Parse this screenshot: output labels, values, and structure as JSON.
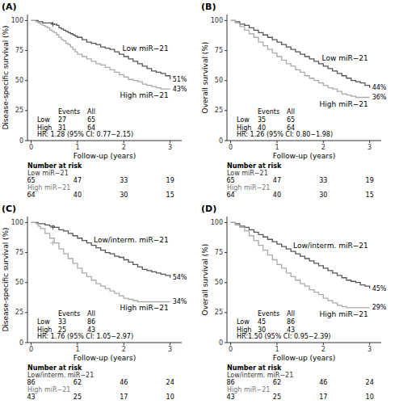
{
  "chart_data": [
    {
      "type": "step",
      "title": "(A)",
      "ylabel": "Disease-specific survival (%)",
      "xlabel": "Follow-up (years)",
      "xlim": [
        -0.08,
        3.25
      ],
      "xticks": [
        0,
        1,
        2,
        3
      ],
      "ylim": [
        0,
        105
      ],
      "yticks": [
        0,
        25,
        50,
        75,
        100
      ],
      "grid": false,
      "events_header": [
        "Events",
        "All"
      ],
      "hr_label": "HR: 1.28 (95% CI: 0.77−2.15)",
      "at_risk_label": "Number at risk",
      "series": [
        {
          "name": "Low miR−21",
          "color": "#555555",
          "x": [
            0,
            0.05,
            0.1,
            0.15,
            0.2,
            0.25,
            0.3,
            0.35,
            0.4,
            0.45,
            0.5,
            0.55,
            0.6,
            0.65,
            0.7,
            0.75,
            0.8,
            0.85,
            0.9,
            0.95,
            1.0,
            1.1,
            1.2,
            1.3,
            1.4,
            1.5,
            1.6,
            1.7,
            1.8,
            1.9,
            2.0,
            2.1,
            2.2,
            2.3,
            2.4,
            2.5,
            2.6,
            2.7,
            2.8,
            2.9,
            3.0
          ],
          "values": [
            100,
            100,
            100,
            99,
            99,
            98,
            98,
            98,
            98,
            97,
            97,
            96,
            94,
            93,
            92,
            91,
            90,
            89,
            88,
            87,
            86,
            84,
            82,
            81,
            80,
            78,
            77,
            76,
            74,
            72,
            70,
            68,
            66,
            64,
            62,
            60,
            58,
            57,
            56,
            54,
            51
          ],
          "censor_x": [
            0.47
          ],
          "censor_values": [
            97
          ],
          "end_label": "51%",
          "events_label": "Low",
          "events": 27,
          "total": 65,
          "at_risk": [
            65,
            47,
            33,
            19
          ]
        },
        {
          "name": "High miR−21",
          "color": "#aaaaaa",
          "x": [
            0,
            0.05,
            0.1,
            0.15,
            0.2,
            0.25,
            0.3,
            0.35,
            0.4,
            0.45,
            0.5,
            0.55,
            0.6,
            0.65,
            0.7,
            0.75,
            0.8,
            0.85,
            0.9,
            0.95,
            1.0,
            1.1,
            1.2,
            1.3,
            1.4,
            1.5,
            1.6,
            1.7,
            1.8,
            1.9,
            2.0,
            2.1,
            2.2,
            2.3,
            2.4,
            2.5,
            2.6,
            2.7,
            2.8,
            2.9,
            3.0
          ],
          "values": [
            100,
            100,
            99,
            98,
            97,
            96,
            95,
            94,
            92,
            91,
            90,
            88,
            86,
            84,
            83,
            81,
            80,
            78,
            76,
            74,
            72,
            70,
            68,
            66,
            64,
            63,
            61,
            59,
            57,
            55,
            53,
            51,
            50,
            49,
            47,
            46,
            45,
            44,
            43,
            43,
            43
          ],
          "censor_x": [],
          "censor_values": [],
          "end_label": "43%",
          "events_label": "High",
          "events": 31,
          "total": 64,
          "at_risk": [
            64,
            40,
            30,
            15
          ]
        }
      ]
    },
    {
      "type": "step",
      "title": "(B)",
      "ylabel": "Overall survival (%)",
      "xlabel": "Follow-up (years)",
      "xlim": [
        -0.08,
        3.25
      ],
      "xticks": [
        0,
        1,
        2,
        3
      ],
      "ylim": [
        0,
        105
      ],
      "yticks": [
        0,
        25,
        50,
        75,
        100
      ],
      "grid": false,
      "events_header": [
        "Events",
        "All"
      ],
      "hr_label": "HR: 1.26 (95% CI: 0.80−1.98)",
      "at_risk_label": "Number at risk",
      "series": [
        {
          "name": "Low miR−21",
          "color": "#555555",
          "x": [
            0,
            0.1,
            0.2,
            0.3,
            0.4,
            0.5,
            0.6,
            0.7,
            0.8,
            0.9,
            1.0,
            1.1,
            1.2,
            1.3,
            1.4,
            1.5,
            1.6,
            1.7,
            1.8,
            1.9,
            2.0,
            2.1,
            2.2,
            2.3,
            2.4,
            2.5,
            2.6,
            2.7,
            2.8,
            2.9,
            3.0
          ],
          "values": [
            100,
            99,
            97,
            96,
            94,
            92,
            90,
            88,
            86,
            84,
            82,
            80,
            78,
            76,
            74,
            72,
            70,
            68,
            66,
            64,
            62,
            60,
            58,
            56,
            54,
            52,
            50,
            49,
            48,
            46,
            44
          ],
          "censor_x": [],
          "censor_values": [],
          "end_label": "44%",
          "events_label": "Low",
          "events": 35,
          "total": 65,
          "at_risk": [
            65,
            47,
            33,
            19
          ]
        },
        {
          "name": "High miR−21",
          "color": "#aaaaaa",
          "x": [
            0,
            0.1,
            0.2,
            0.3,
            0.4,
            0.5,
            0.6,
            0.7,
            0.8,
            0.9,
            1.0,
            1.1,
            1.2,
            1.3,
            1.4,
            1.5,
            1.6,
            1.7,
            1.8,
            1.9,
            2.0,
            2.1,
            2.2,
            2.3,
            2.4,
            2.5,
            2.6,
            2.7,
            2.8,
            2.9,
            3.0
          ],
          "values": [
            100,
            98,
            95,
            92,
            89,
            86,
            82,
            79,
            76,
            73,
            70,
            67,
            64,
            62,
            59,
            57,
            54,
            52,
            50,
            48,
            46,
            44,
            43,
            41,
            39,
            38,
            37,
            36,
            36,
            36,
            36
          ],
          "censor_x": [],
          "censor_values": [],
          "end_label": "36%",
          "events_label": "High",
          "events": 40,
          "total": 64,
          "at_risk": [
            64,
            40,
            30,
            15
          ]
        }
      ]
    },
    {
      "type": "step",
      "title": "(C)",
      "ylabel": "Disease-specific survival (%)",
      "xlabel": "Follow-up (years)",
      "xlim": [
        -0.08,
        3.25
      ],
      "xticks": [
        0,
        1,
        2,
        3
      ],
      "ylim": [
        0,
        105
      ],
      "yticks": [
        0,
        25,
        50,
        75,
        100
      ],
      "grid": false,
      "events_header": [
        "Events",
        "All"
      ],
      "hr_label": "HR: 1.76 (95% CI: 1.05−2.97)",
      "at_risk_label": "Number at risk",
      "series": [
        {
          "name": "Low/interm. miR−21",
          "color": "#555555",
          "x": [
            0,
            0.05,
            0.1,
            0.15,
            0.2,
            0.3,
            0.4,
            0.5,
            0.6,
            0.7,
            0.8,
            0.9,
            1.0,
            1.1,
            1.2,
            1.3,
            1.4,
            1.5,
            1.6,
            1.7,
            1.8,
            1.9,
            2.0,
            2.1,
            2.2,
            2.3,
            2.4,
            2.5,
            2.6,
            2.7,
            2.8,
            2.9,
            3.0
          ],
          "values": [
            100,
            100,
            100,
            99,
            99,
            98,
            97,
            96,
            94,
            93,
            91,
            89,
            87,
            85,
            83,
            81,
            79,
            77,
            75,
            74,
            72,
            71,
            69,
            67,
            65,
            63,
            61,
            60,
            59,
            58,
            57,
            56,
            54
          ],
          "censor_x": [
            0.47
          ],
          "censor_values": [
            96
          ],
          "end_label": "54%",
          "events_label": "Low",
          "events": 33,
          "total": 86,
          "at_risk": [
            86,
            62,
            46,
            24
          ]
        },
        {
          "name": "High miR−21",
          "color": "#aaaaaa",
          "x": [
            0,
            0.05,
            0.1,
            0.15,
            0.2,
            0.3,
            0.4,
            0.5,
            0.6,
            0.7,
            0.8,
            0.9,
            1.0,
            1.1,
            1.2,
            1.3,
            1.4,
            1.5,
            1.6,
            1.7,
            1.8,
            1.9,
            2.0,
            2.1,
            2.2,
            2.3,
            2.4,
            2.5,
            2.6,
            2.7,
            2.8,
            2.9,
            3.0
          ],
          "values": [
            100,
            100,
            99,
            97,
            95,
            91,
            87,
            83,
            78,
            74,
            70,
            66,
            62,
            58,
            55,
            52,
            49,
            47,
            45,
            43,
            41,
            39,
            37,
            36,
            35,
            34,
            34,
            34,
            34,
            34,
            34,
            34,
            34
          ],
          "censor_x": [
            0.47
          ],
          "censor_values": [
            83
          ],
          "end_label": "34%",
          "events_label": "High",
          "events": 25,
          "total": 43,
          "at_risk": [
            43,
            25,
            17,
            10
          ]
        }
      ]
    },
    {
      "type": "step",
      "title": "(D)",
      "ylabel": "Overall survival (%)",
      "xlabel": "Follow-up (years)",
      "xlim": [
        -0.08,
        3.25
      ],
      "xticks": [
        0,
        1,
        2,
        3
      ],
      "ylim": [
        0,
        105
      ],
      "yticks": [
        0,
        25,
        50,
        75,
        100
      ],
      "grid": false,
      "events_header": [
        "Events",
        "All"
      ],
      "hr_label": "HR:1.50 (95% CI: 0.95−2.39)",
      "at_risk_label": "Number at risk",
      "series": [
        {
          "name": "Low/interm. miR−21",
          "color": "#555555",
          "x": [
            0,
            0.1,
            0.2,
            0.3,
            0.4,
            0.5,
            0.6,
            0.7,
            0.8,
            0.9,
            1.0,
            1.1,
            1.2,
            1.3,
            1.4,
            1.5,
            1.6,
            1.7,
            1.8,
            1.9,
            2.0,
            2.1,
            2.2,
            2.3,
            2.4,
            2.5,
            2.6,
            2.7,
            2.8,
            2.9,
            3.0
          ],
          "values": [
            100,
            99,
            97,
            96,
            94,
            92,
            90,
            88,
            86,
            84,
            82,
            80,
            78,
            76,
            74,
            72,
            70,
            68,
            66,
            64,
            62,
            60,
            58,
            56,
            54,
            52,
            51,
            50,
            48,
            47,
            45
          ],
          "censor_x": [],
          "censor_values": [],
          "end_label": "45%",
          "events_label": "Low",
          "events": 45,
          "total": 86,
          "at_risk": [
            86,
            62,
            46,
            24
          ]
        },
        {
          "name": "High miR−21",
          "color": "#aaaaaa",
          "x": [
            0,
            0.1,
            0.2,
            0.3,
            0.4,
            0.5,
            0.6,
            0.7,
            0.8,
            0.9,
            1.0,
            1.1,
            1.2,
            1.3,
            1.4,
            1.5,
            1.6,
            1.7,
            1.8,
            1.9,
            2.0,
            2.1,
            2.2,
            2.3,
            2.4,
            2.5,
            2.6,
            2.7,
            2.8,
            2.9,
            3.0
          ],
          "values": [
            100,
            98,
            96,
            93,
            89,
            85,
            81,
            77,
            73,
            69,
            65,
            62,
            58,
            55,
            52,
            49,
            47,
            44,
            42,
            40,
            37,
            35,
            33,
            31,
            30,
            29,
            29,
            29,
            29,
            29,
            29
          ],
          "censor_x": [],
          "censor_values": [],
          "end_label": "29%",
          "events_label": "High",
          "events": 30,
          "total": 43,
          "at_risk": [
            43,
            25,
            17,
            10
          ]
        }
      ]
    }
  ]
}
